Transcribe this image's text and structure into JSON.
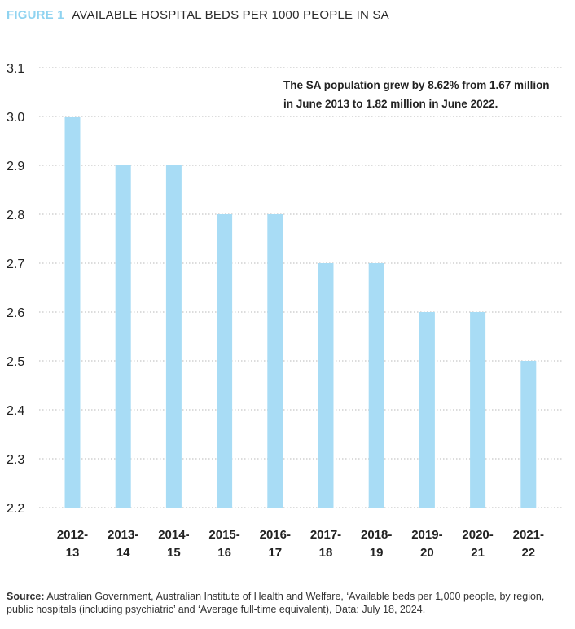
{
  "figure_label": "FIGURE 1",
  "title": "AVAILABLE HOSPITAL BEDS PER 1000 PEOPLE IN SA",
  "annotation": {
    "line1": "The SA population grew by 8.62% from 1.67 million",
    "line2": "in June 2013 to 1.82 million in June 2022."
  },
  "source": {
    "label": "Source:",
    "text": "Australian Government, Australian Institute of Health and Welfare, ‘Available beds per 1,000 people, by region, public hospitals (including psychiatric’ and ‘Average full-time equivalent), Data: July 18, 2024."
  },
  "colors": {
    "bar": "#a8dcf5",
    "grid": "#b8b8b8",
    "figure_label": "#8fd3f0"
  },
  "chart_data": {
    "type": "bar",
    "categories": [
      [
        "2012-",
        "13"
      ],
      [
        "2013-",
        "14"
      ],
      [
        "2014-",
        "15"
      ],
      [
        "2015-",
        "16"
      ],
      [
        "2016-",
        "17"
      ],
      [
        "2017-",
        "18"
      ],
      [
        "2018-",
        "19"
      ],
      [
        "2019-",
        "20"
      ],
      [
        "2020-",
        "21"
      ],
      [
        "2021-",
        "22"
      ]
    ],
    "values": [
      3.0,
      2.9,
      2.9,
      2.8,
      2.8,
      2.7,
      2.7,
      2.6,
      2.6,
      2.5
    ],
    "ylim": [
      2.2,
      3.1
    ],
    "yticks": [
      "2.2",
      "2.3",
      "2.4",
      "2.5",
      "2.6",
      "2.7",
      "2.8",
      "2.9",
      "3.0",
      "3.1"
    ],
    "grid": "horizontal dotted",
    "legend": "none"
  }
}
